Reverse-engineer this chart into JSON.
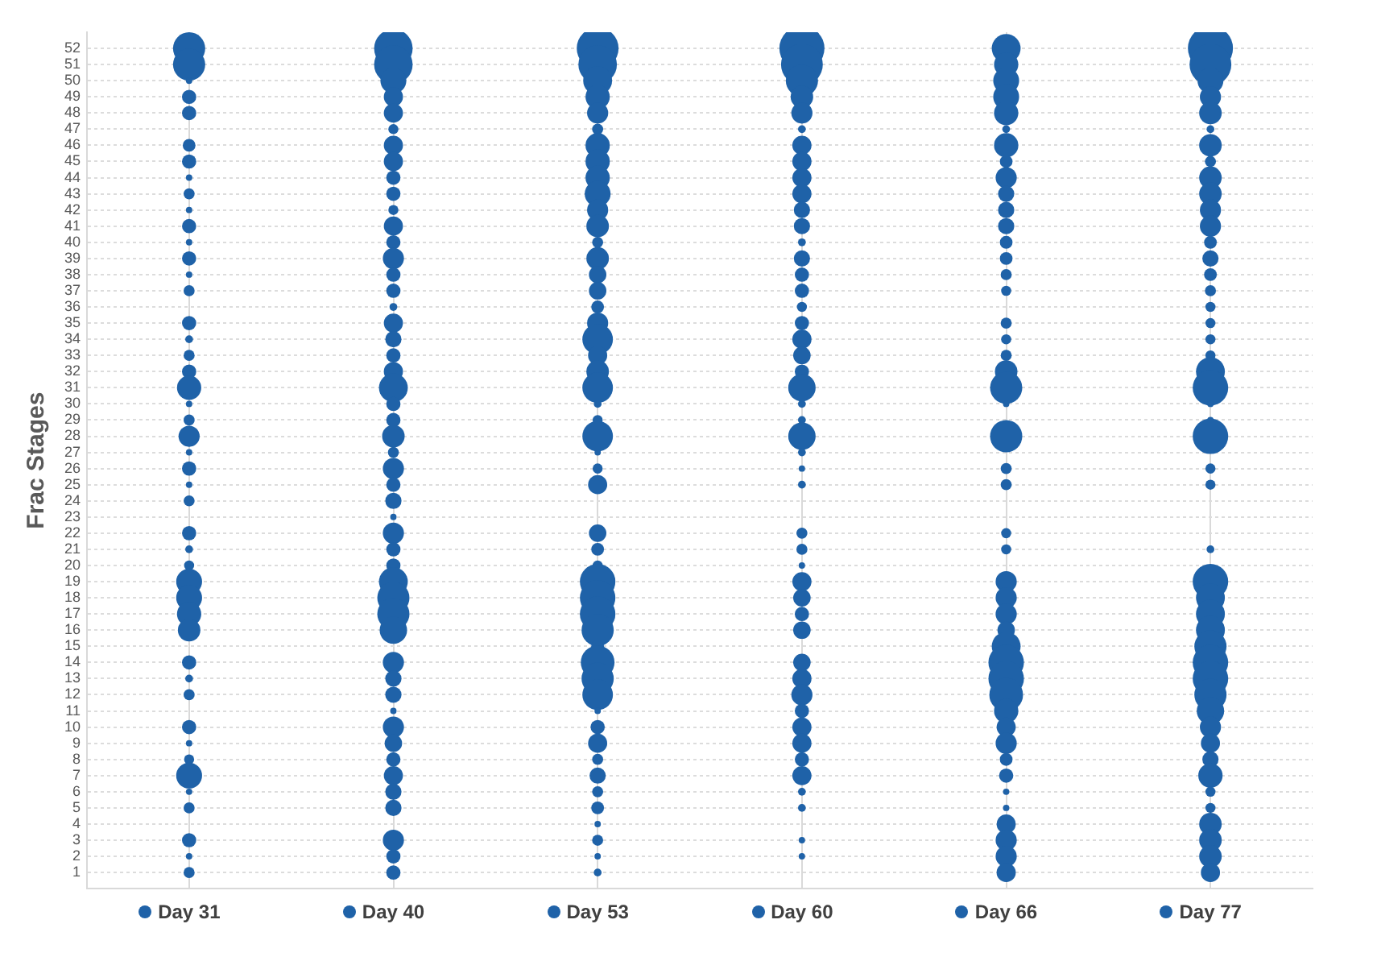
{
  "chart_data": {
    "type": "bubble",
    "ylabel": "Frac Stages",
    "categories": [
      "Day 31",
      "Day 40",
      "Day 53",
      "Day 60",
      "Day 66",
      "Day 77"
    ],
    "ylim": [
      0,
      53
    ],
    "yticks": [
      1,
      2,
      3,
      4,
      5,
      6,
      7,
      8,
      9,
      10,
      11,
      12,
      13,
      14,
      15,
      16,
      17,
      18,
      19,
      20,
      21,
      22,
      23,
      24,
      25,
      26,
      27,
      28,
      29,
      30,
      31,
      32,
      33,
      34,
      35,
      36,
      37,
      38,
      39,
      40,
      41,
      42,
      43,
      44,
      45,
      46,
      47,
      48,
      49,
      50,
      51,
      52
    ],
    "grid": true,
    "marker": "circle",
    "series": [
      {
        "color": "#1f62a8",
        "values": [
          1,
          1,
          1,
          null,
          1,
          1
        ],
        "sizes": [
          0.06,
          0.1,
          0.03,
          null,
          0.18,
          0.18
        ]
      },
      {
        "color": "#1f62a8",
        "values": [
          2,
          2,
          2,
          2,
          2,
          2
        ],
        "sizes": [
          0.02,
          0.1,
          0.02,
          0.02,
          0.22,
          0.25
        ]
      },
      {
        "color": "#1f62a8",
        "values": [
          3,
          3,
          3,
          3,
          3,
          3
        ],
        "sizes": [
          0.1,
          0.22,
          0.06,
          0.02,
          0.22,
          0.25
        ]
      },
      {
        "color": "#1f62a8",
        "values": [
          null,
          null,
          4,
          null,
          4,
          4
        ],
        "sizes": [
          null,
          null,
          0.02,
          null,
          0.18,
          0.25
        ]
      },
      {
        "color": "#1f62a8",
        "values": [
          5,
          5,
          5,
          5,
          5,
          5
        ],
        "sizes": [
          0.06,
          0.13,
          0.08,
          0.03,
          0.02,
          0.05
        ]
      },
      {
        "color": "#1f62a8",
        "values": [
          6,
          6,
          6,
          6,
          6,
          6
        ],
        "sizes": [
          0.02,
          0.13,
          0.06,
          0.03,
          0.02,
          0.05
        ]
      },
      {
        "color": "#1f62a8",
        "values": [
          7,
          7,
          7,
          7,
          7,
          7
        ],
        "sizes": [
          0.33,
          0.18,
          0.13,
          0.18,
          0.1,
          0.29
        ]
      },
      {
        "color": "#1f62a8",
        "values": [
          8,
          8,
          8,
          8,
          8,
          8
        ],
        "sizes": [
          0.05,
          0.1,
          0.06,
          0.1,
          0.08,
          0.13
        ]
      },
      {
        "color": "#1f62a8",
        "values": [
          9,
          9,
          9,
          9,
          9,
          9
        ],
        "sizes": [
          0.02,
          0.15,
          0.18,
          0.18,
          0.22,
          0.18
        ]
      },
      {
        "color": "#1f62a8",
        "values": [
          10,
          10,
          10,
          10,
          10,
          10
        ],
        "sizes": [
          0.1,
          0.22,
          0.1,
          0.18,
          0.18,
          0.22
        ]
      },
      {
        "color": "#1f62a8",
        "values": [
          null,
          11,
          11,
          11,
          11,
          11
        ],
        "sizes": [
          null,
          0.02,
          0.02,
          0.1,
          0.29,
          0.37
        ]
      },
      {
        "color": "#1f62a8",
        "values": [
          12,
          12,
          12,
          12,
          12,
          12
        ],
        "sizes": [
          0.06,
          0.13,
          0.46,
          0.22,
          0.56,
          0.51
        ]
      },
      {
        "color": "#1f62a8",
        "values": [
          13,
          13,
          13,
          13,
          13,
          13
        ],
        "sizes": [
          0.03,
          0.13,
          0.51,
          0.18,
          0.62,
          0.62
        ]
      },
      {
        "color": "#1f62a8",
        "values": [
          14,
          14,
          14,
          14,
          14,
          14
        ],
        "sizes": [
          0.1,
          0.22,
          0.56,
          0.15,
          0.62,
          0.62
        ]
      },
      {
        "color": "#1f62a8",
        "values": [
          null,
          null,
          15,
          null,
          15,
          15
        ],
        "sizes": [
          null,
          null,
          0.08,
          null,
          0.41,
          0.51
        ]
      },
      {
        "color": "#1f62a8",
        "values": [
          16,
          16,
          16,
          16,
          16,
          16
        ],
        "sizes": [
          0.25,
          0.37,
          0.51,
          0.15,
          0.15,
          0.41
        ]
      },
      {
        "color": "#1f62a8",
        "values": [
          17,
          17,
          17,
          17,
          17,
          17
        ],
        "sizes": [
          0.29,
          0.51,
          0.62,
          0.1,
          0.22,
          0.41
        ]
      },
      {
        "color": "#1f62a8",
        "values": [
          18,
          18,
          18,
          18,
          18,
          18
        ],
        "sizes": [
          0.33,
          0.51,
          0.62,
          0.15,
          0.22,
          0.41
        ]
      },
      {
        "color": "#1f62a8",
        "values": [
          19,
          19,
          19,
          19,
          19,
          19
        ],
        "sizes": [
          0.33,
          0.41,
          0.62,
          0.18,
          0.22,
          0.62
        ]
      },
      {
        "color": "#1f62a8",
        "values": [
          20,
          20,
          20,
          20,
          null,
          null
        ],
        "sizes": [
          0.05,
          0.1,
          0.05,
          0.02,
          null,
          null
        ]
      },
      {
        "color": "#1f62a8",
        "values": [
          21,
          21,
          21,
          21,
          21,
          21
        ],
        "sizes": [
          0.03,
          0.1,
          0.08,
          0.06,
          0.05,
          0.03
        ]
      },
      {
        "color": "#1f62a8",
        "values": [
          22,
          22,
          22,
          22,
          22,
          null
        ],
        "sizes": [
          0.1,
          0.22,
          0.15,
          0.06,
          0.05,
          null
        ]
      },
      {
        "color": "#1f62a8",
        "values": [
          null,
          23,
          null,
          null,
          null,
          null
        ],
        "sizes": [
          null,
          0.02,
          null,
          null,
          null,
          null
        ]
      },
      {
        "color": "#1f62a8",
        "values": [
          24,
          24,
          null,
          null,
          null,
          null
        ],
        "sizes": [
          0.06,
          0.13,
          null,
          null,
          null,
          null
        ]
      },
      {
        "color": "#1f62a8",
        "values": [
          25,
          25,
          25,
          25,
          25,
          25
        ],
        "sizes": [
          0.02,
          0.1,
          0.18,
          0.03,
          0.06,
          0.05
        ]
      },
      {
        "color": "#1f62a8",
        "values": [
          26,
          26,
          26,
          26,
          26,
          26
        ],
        "sizes": [
          0.1,
          0.22,
          0.05,
          0.02,
          0.06,
          0.05
        ]
      },
      {
        "color": "#1f62a8",
        "values": [
          27,
          27,
          27,
          27,
          null,
          null
        ],
        "sizes": [
          0.02,
          0.06,
          0.02,
          0.03,
          null,
          null
        ]
      },
      {
        "color": "#1f62a8",
        "values": [
          28,
          28,
          28,
          28,
          28,
          28
        ],
        "sizes": [
          0.22,
          0.25,
          0.46,
          0.37,
          0.51,
          0.62
        ]
      },
      {
        "color": "#1f62a8",
        "values": [
          29,
          29,
          29,
          29,
          null,
          29
        ],
        "sizes": [
          0.06,
          0.1,
          0.05,
          0.03,
          null,
          0.02
        ]
      },
      {
        "color": "#1f62a8",
        "values": [
          30,
          30,
          30,
          30,
          30,
          30
        ],
        "sizes": [
          0.02,
          0.1,
          0.03,
          0.03,
          0.02,
          0.02
        ]
      },
      {
        "color": "#1f62a8",
        "values": [
          31,
          31,
          31,
          31,
          31,
          31
        ],
        "sizes": [
          0.29,
          0.41,
          0.46,
          0.37,
          0.51,
          0.62
        ]
      },
      {
        "color": "#1f62a8",
        "values": [
          32,
          32,
          32,
          32,
          32,
          32
        ],
        "sizes": [
          0.1,
          0.18,
          0.25,
          0.1,
          0.25,
          0.41
        ]
      },
      {
        "color": "#1f62a8",
        "values": [
          33,
          33,
          33,
          33,
          33,
          33
        ],
        "sizes": [
          0.06,
          0.1,
          0.18,
          0.15,
          0.06,
          0.05
        ]
      },
      {
        "color": "#1f62a8",
        "values": [
          34,
          34,
          34,
          34,
          34,
          34
        ],
        "sizes": [
          0.03,
          0.13,
          0.46,
          0.18,
          0.05,
          0.05
        ]
      },
      {
        "color": "#1f62a8",
        "values": [
          35,
          35,
          35,
          35,
          35,
          35
        ],
        "sizes": [
          0.1,
          0.18,
          0.22,
          0.1,
          0.06,
          0.05
        ]
      },
      {
        "color": "#1f62a8",
        "values": [
          null,
          36,
          36,
          36,
          null,
          36
        ],
        "sizes": [
          null,
          0.03,
          0.08,
          0.05,
          null,
          0.05
        ]
      },
      {
        "color": "#1f62a8",
        "values": [
          37,
          37,
          37,
          37,
          37,
          37
        ],
        "sizes": [
          0.06,
          0.1,
          0.15,
          0.1,
          0.05,
          0.06
        ]
      },
      {
        "color": "#1f62a8",
        "values": [
          38,
          38,
          38,
          38,
          38,
          38
        ],
        "sizes": [
          0.02,
          0.1,
          0.15,
          0.1,
          0.06,
          0.08
        ]
      },
      {
        "color": "#1f62a8",
        "values": [
          39,
          39,
          39,
          39,
          39,
          39
        ],
        "sizes": [
          0.1,
          0.22,
          0.25,
          0.13,
          0.08,
          0.13
        ]
      },
      {
        "color": "#1f62a8",
        "values": [
          40,
          40,
          40,
          40,
          40,
          40
        ],
        "sizes": [
          0.02,
          0.1,
          0.06,
          0.03,
          0.08,
          0.08
        ]
      },
      {
        "color": "#1f62a8",
        "values": [
          41,
          41,
          41,
          41,
          41,
          41
        ],
        "sizes": [
          0.1,
          0.18,
          0.25,
          0.13,
          0.13,
          0.22
        ]
      },
      {
        "color": "#1f62a8",
        "values": [
          42,
          42,
          42,
          42,
          42,
          42
        ],
        "sizes": [
          0.02,
          0.05,
          0.22,
          0.13,
          0.13,
          0.22
        ]
      },
      {
        "color": "#1f62a8",
        "values": [
          43,
          43,
          43,
          43,
          43,
          43
        ],
        "sizes": [
          0.06,
          0.1,
          0.33,
          0.18,
          0.13,
          0.25
        ]
      },
      {
        "color": "#1f62a8",
        "values": [
          44,
          44,
          44,
          44,
          44,
          44
        ],
        "sizes": [
          0.02,
          0.1,
          0.29,
          0.18,
          0.22,
          0.25
        ]
      },
      {
        "color": "#1f62a8",
        "values": [
          45,
          45,
          45,
          45,
          45,
          45
        ],
        "sizes": [
          0.1,
          0.18,
          0.29,
          0.18,
          0.08,
          0.06
        ]
      },
      {
        "color": "#1f62a8",
        "values": [
          46,
          46,
          46,
          46,
          46,
          46
        ],
        "sizes": [
          0.08,
          0.18,
          0.29,
          0.18,
          0.29,
          0.25
        ]
      },
      {
        "color": "#1f62a8",
        "values": [
          null,
          47,
          47,
          47,
          47,
          47
        ],
        "sizes": [
          null,
          0.05,
          0.06,
          0.03,
          0.03,
          0.03
        ]
      },
      {
        "color": "#1f62a8",
        "values": [
          48,
          48,
          48,
          48,
          48,
          48
        ],
        "sizes": [
          0.1,
          0.18,
          0.22,
          0.22,
          0.29,
          0.25
        ]
      },
      {
        "color": "#1f62a8",
        "values": [
          49,
          49,
          49,
          49,
          49,
          49
        ],
        "sizes": [
          0.1,
          0.18,
          0.29,
          0.25,
          0.33,
          0.22
        ]
      },
      {
        "color": "#1f62a8",
        "values": [
          50,
          50,
          50,
          50,
          50,
          50
        ],
        "sizes": [
          0.02,
          0.33,
          0.41,
          0.51,
          0.33,
          0.33
        ]
      },
      {
        "color": "#1f62a8",
        "values": [
          51,
          51,
          51,
          51,
          51,
          51
        ],
        "sizes": [
          0.51,
          0.73,
          0.73,
          0.86,
          0.29,
          0.86
        ]
      },
      {
        "color": "#1f62a8",
        "values": [
          52,
          52,
          52,
          52,
          52,
          52
        ],
        "sizes": [
          0.51,
          0.73,
          0.86,
          1,
          0.41,
          1
        ]
      }
    ]
  }
}
